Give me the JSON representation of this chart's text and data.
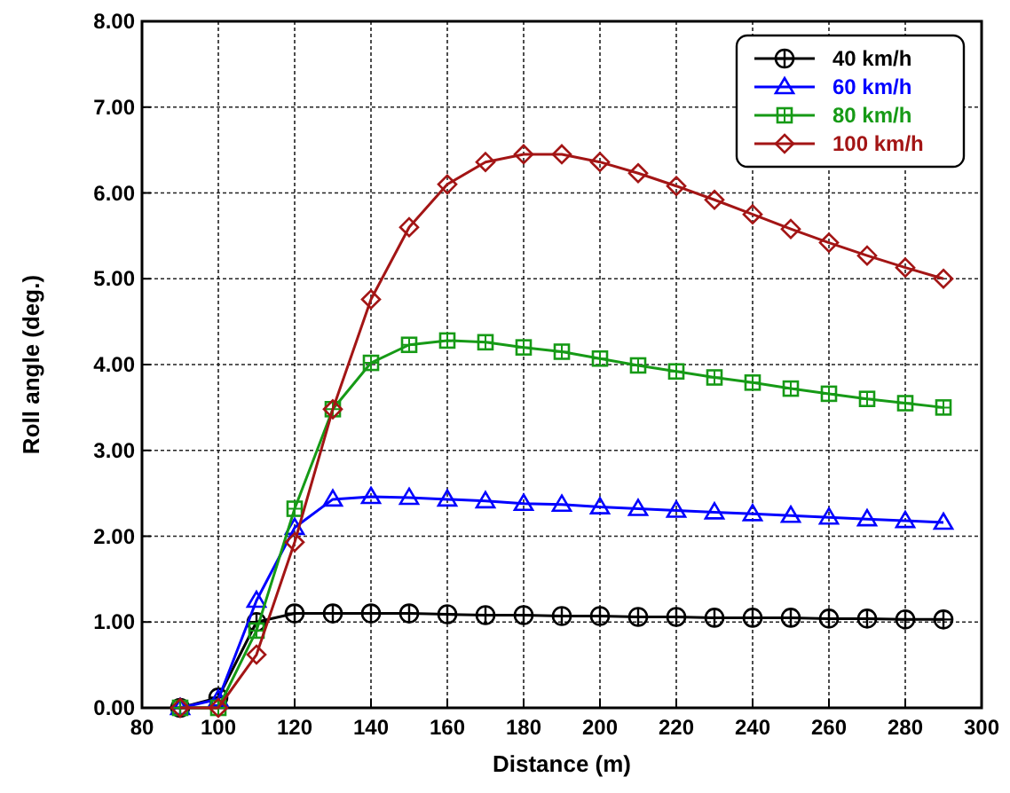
{
  "chart_data": {
    "type": "line",
    "xlabel": "Distance (m)",
    "ylabel": "Roll angle (deg.)",
    "x": [
      90,
      100,
      110,
      120,
      130,
      140,
      150,
      160,
      170,
      180,
      190,
      200,
      210,
      220,
      230,
      240,
      250,
      260,
      270,
      280,
      290
    ],
    "xlim": [
      80,
      300
    ],
    "xticks": [
      80,
      100,
      120,
      140,
      160,
      180,
      200,
      220,
      240,
      260,
      280,
      300
    ],
    "ylim": [
      0,
      8
    ],
    "yticks": [
      {
        "value": 0,
        "label": "0.00"
      },
      {
        "value": 1,
        "label": "1.00"
      },
      {
        "value": 2,
        "label": "2.00"
      },
      {
        "value": 3,
        "label": "3.00"
      },
      {
        "value": 4,
        "label": "4.00"
      },
      {
        "value": 5,
        "label": "5.00"
      },
      {
        "value": 6,
        "label": "6.00"
      },
      {
        "value": 7,
        "label": "7.00"
      },
      {
        "value": 8,
        "label": "8.00"
      }
    ],
    "grid": true,
    "legend": "top right",
    "series": [
      {
        "name": "40 km/h",
        "color": "#000000",
        "marker": "circle",
        "values": [
          0,
          0.12,
          1.0,
          1.1,
          1.1,
          1.1,
          1.1,
          1.09,
          1.08,
          1.08,
          1.07,
          1.07,
          1.06,
          1.06,
          1.05,
          1.05,
          1.05,
          1.04,
          1.04,
          1.03,
          1.03
        ]
      },
      {
        "name": "60 km/h",
        "color": "#0000ff",
        "marker": "triangle",
        "values": [
          0,
          0.1,
          1.25,
          2.1,
          2.43,
          2.46,
          2.45,
          2.43,
          2.41,
          2.38,
          2.37,
          2.34,
          2.32,
          2.3,
          2.28,
          2.26,
          2.24,
          2.22,
          2.2,
          2.18,
          2.16
        ]
      },
      {
        "name": "80 km/h",
        "color": "#169a16",
        "marker": "square",
        "values": [
          0,
          0,
          0.9,
          2.32,
          3.48,
          4.02,
          4.23,
          4.28,
          4.26,
          4.2,
          4.15,
          4.07,
          3.99,
          3.92,
          3.85,
          3.79,
          3.72,
          3.66,
          3.6,
          3.55,
          3.5
        ]
      },
      {
        "name": "100 km/h",
        "color": "#a31515",
        "marker": "diamond",
        "values": [
          0,
          0,
          0.62,
          1.93,
          3.48,
          4.76,
          5.6,
          6.1,
          6.36,
          6.45,
          6.45,
          6.36,
          6.23,
          6.08,
          5.92,
          5.75,
          5.58,
          5.42,
          5.27,
          5.13,
          5.0
        ]
      }
    ]
  }
}
